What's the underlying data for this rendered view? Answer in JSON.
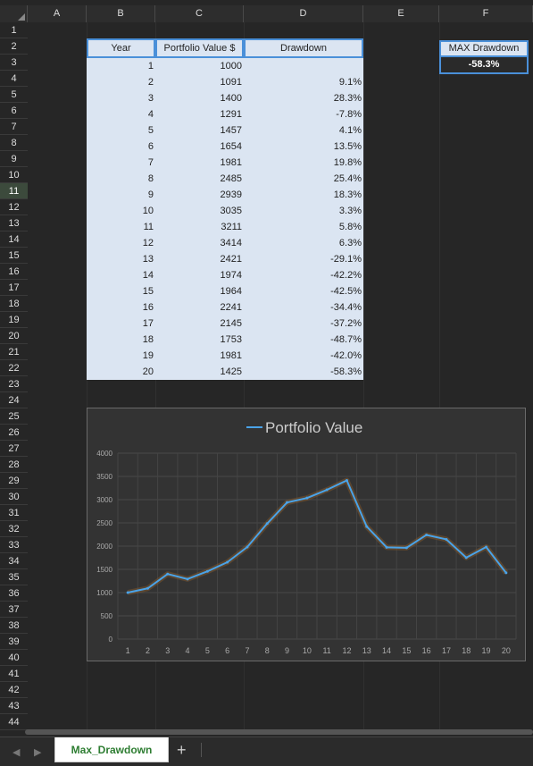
{
  "columns": [
    "A",
    "B",
    "C",
    "D",
    "E",
    "F"
  ],
  "rows": [
    "1",
    "2",
    "3",
    "4",
    "5",
    "6",
    "7",
    "8",
    "9",
    "10",
    "11",
    "12",
    "13",
    "14",
    "15",
    "16",
    "17",
    "18",
    "19",
    "20",
    "21",
    "22",
    "23",
    "24",
    "25",
    "26",
    "27",
    "28",
    "29",
    "30",
    "31",
    "32",
    "33",
    "34",
    "35",
    "36",
    "37",
    "38",
    "39",
    "40",
    "41",
    "42",
    "43",
    "44"
  ],
  "selected_row": "11",
  "table": {
    "headers": [
      "Year",
      "Portfolio Value $",
      "Drawdown"
    ],
    "rows": [
      [
        "1",
        "1000",
        ""
      ],
      [
        "2",
        "1091",
        "9.1%"
      ],
      [
        "3",
        "1400",
        "28.3%"
      ],
      [
        "4",
        "1291",
        "-7.8%"
      ],
      [
        "5",
        "1457",
        "4.1%"
      ],
      [
        "6",
        "1654",
        "13.5%"
      ],
      [
        "7",
        "1981",
        "19.8%"
      ],
      [
        "8",
        "2485",
        "25.4%"
      ],
      [
        "9",
        "2939",
        "18.3%"
      ],
      [
        "10",
        "3035",
        "3.3%"
      ],
      [
        "11",
        "3211",
        "5.8%"
      ],
      [
        "12",
        "3414",
        "6.3%"
      ],
      [
        "13",
        "2421",
        "-29.1%"
      ],
      [
        "14",
        "1974",
        "-42.2%"
      ],
      [
        "15",
        "1964",
        "-42.5%"
      ],
      [
        "16",
        "2241",
        "-34.4%"
      ],
      [
        "17",
        "2145",
        "-37.2%"
      ],
      [
        "18",
        "1753",
        "-48.7%"
      ],
      [
        "19",
        "1981",
        "-42.0%"
      ],
      [
        "20",
        "1425",
        "-58.3%"
      ]
    ]
  },
  "max_drawdown": {
    "label": "MAX Drawdown",
    "value": "-58.3%"
  },
  "chart_data": {
    "type": "line",
    "title": "Portfolio Value",
    "x": [
      1,
      2,
      3,
      4,
      5,
      6,
      7,
      8,
      9,
      10,
      11,
      12,
      13,
      14,
      15,
      16,
      17,
      18,
      19,
      20
    ],
    "series": [
      {
        "name": "Portfolio Value",
        "values": [
          1000,
          1091,
          1400,
          1291,
          1457,
          1654,
          1981,
          2485,
          2939,
          3035,
          3211,
          3414,
          2421,
          1974,
          1964,
          2241,
          2145,
          1753,
          1981,
          1425
        ]
      }
    ],
    "ylim": [
      0,
      4000
    ],
    "yticks": [
      0,
      500,
      1000,
      1500,
      2000,
      2500,
      3000,
      3500,
      4000
    ],
    "legend": "top",
    "grid": true,
    "line_color": "#4aa3e8"
  },
  "sheet_tabs": {
    "active": "Max_Drawdown",
    "add_label": "+"
  },
  "nav": {
    "prev": "◀",
    "next": "▶"
  }
}
